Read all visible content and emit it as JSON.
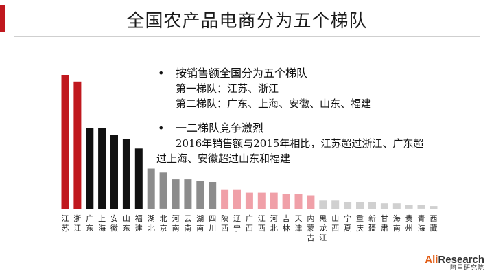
{
  "header": {
    "title": "全国农产品电商分为五个梯队"
  },
  "bullets": {
    "b1": "按销售额全国分为五个梯队",
    "b1_l1": "第一梯队：江苏、浙江",
    "b1_l2": "第二梯队：广东、上海、安徽、山东、福建",
    "b2": "一二梯队竞争激烈",
    "b2_l1": "2016年销售额与2015年相比，江苏超过浙江、广东超",
    "b2_l2": "过上海、安徽超过山东和福建",
    "dot": "•"
  },
  "logo": {
    "main_a": "Ali",
    "main_b": "Research",
    "sub": "阿里研究院"
  },
  "colors": {
    "tier1": "#c0181e",
    "tier2": "#111111",
    "tier3": "#8c8c8c",
    "tier4": "#f0a0a8",
    "tier5": "#d0d0d0",
    "accent": "#c0181e"
  },
  "chart_data": {
    "type": "bar",
    "categories": [
      "江苏",
      "浙江",
      "广东",
      "上海",
      "安徽",
      "山东",
      "福建",
      "湖北",
      "北京",
      "河南",
      "云南",
      "湖南",
      "四川",
      "陕西",
      "辽宁",
      "广西",
      "江西",
      "河北",
      "吉林",
      "天津",
      "内蒙古",
      "黑龙江",
      "山西",
      "宁夏",
      "重庆",
      "新疆",
      "甘肃",
      "海南",
      "贵州",
      "青海",
      "西藏"
    ],
    "values": [
      100,
      95,
      60,
      60,
      55,
      52,
      45,
      30,
      27,
      22,
      22,
      21,
      20,
      14,
      14,
      12,
      12,
      12,
      11,
      11,
      10,
      6,
      6,
      5,
      5,
      5,
      4,
      4,
      3,
      3,
      2
    ],
    "tiers": [
      1,
      1,
      2,
      2,
      2,
      2,
      2,
      3,
      3,
      3,
      3,
      3,
      3,
      4,
      4,
      4,
      4,
      4,
      4,
      4,
      4,
      5,
      5,
      5,
      5,
      5,
      5,
      5,
      5,
      5,
      5
    ],
    "ylim": [
      0,
      100
    ],
    "grid": false,
    "legend": "none"
  }
}
